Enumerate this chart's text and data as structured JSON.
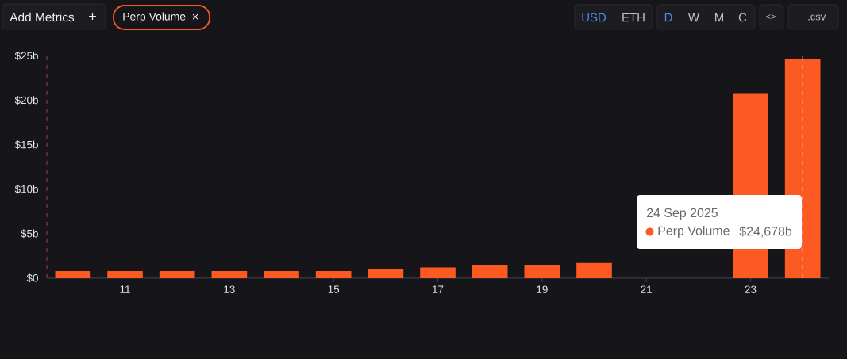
{
  "chart_data": {
    "type": "bar",
    "x": [
      10,
      11,
      12,
      13,
      14,
      15,
      16,
      17,
      18,
      19,
      20,
      21,
      22,
      23,
      24
    ],
    "series": [
      {
        "name": "Perp Volume",
        "color": "#fc5a22",
        "values": [
          0.8,
          0.8,
          0.8,
          0.8,
          0.8,
          0.8,
          1.0,
          1.2,
          1.5,
          1.5,
          1.7,
          null,
          null,
          20.8,
          24.678
        ]
      }
    ],
    "xlim": [
      9.5,
      24.5
    ],
    "xticks": [
      11,
      13,
      15,
      17,
      19,
      21,
      23
    ],
    "ylim": [
      0,
      25
    ],
    "yticks": [
      {
        "value": 0,
        "label": "$0"
      },
      {
        "value": 5,
        "label": "$5b"
      },
      {
        "value": 10,
        "label": "$10b"
      },
      {
        "value": 15,
        "label": "$15b"
      },
      {
        "value": 20,
        "label": "$20b"
      },
      {
        "value": 25,
        "label": "$25b"
      }
    ],
    "legend": "bottom right",
    "ref_lines": [
      {
        "axis": "x",
        "value": 9.5,
        "color": "#b03a40",
        "line_style": "dashed"
      },
      {
        "axis": "x",
        "value": 24,
        "color": "#e6e6e6",
        "line_style": "dashed"
      }
    ],
    "annotations": [
      "Add Metrics",
      "+",
      "×",
      "USD",
      "ETH",
      "D",
      "W",
      "M",
      "C",
      "<>",
      ".csv",
      "24 Sep 2025",
      "$24,678b"
    ]
  }
}
